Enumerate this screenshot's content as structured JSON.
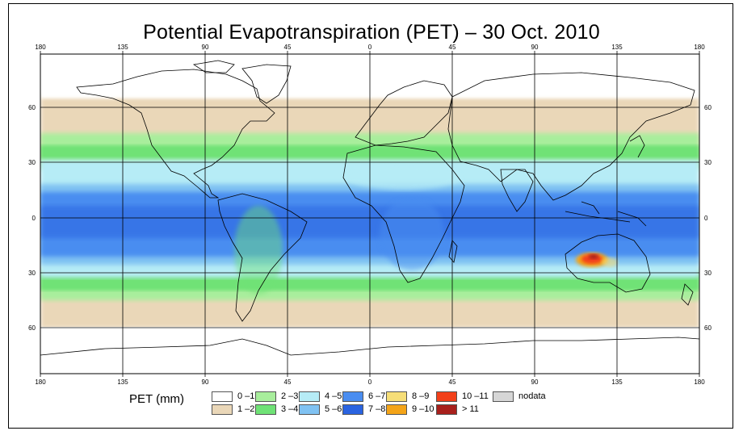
{
  "title": "Potential Evapotranspiration (PET) – 30 Oct. 2010",
  "axes": {
    "lon_ticks": [
      "180",
      "135",
      "90",
      "45",
      "0",
      "45",
      "90",
      "135",
      "180"
    ],
    "lat_ticks": [
      "60",
      "30",
      "0",
      "30",
      "60"
    ]
  },
  "legend": {
    "label": "PET (mm)",
    "items": [
      {
        "label": "0 –1",
        "color": "#ffffff"
      },
      {
        "label": "1 –2",
        "color": "#ead7b8"
      },
      {
        "label": "2 –3",
        "color": "#a8ee9c"
      },
      {
        "label": "3 –4",
        "color": "#6fe276"
      },
      {
        "label": "4 –5",
        "color": "#b6ecf6"
      },
      {
        "label": "5 –6",
        "color": "#80c2f2"
      },
      {
        "label": "6 –7",
        "color": "#4a8df0"
      },
      {
        "label": "7 –8",
        "color": "#2a63e0"
      },
      {
        "label": "8 –9",
        "color": "#f6de78"
      },
      {
        "label": "9 –10",
        "color": "#f4a418"
      },
      {
        "label": "10 –11",
        "color": "#f2401a"
      },
      {
        "label": "> 11",
        "color": "#a8201c"
      },
      {
        "label": "nodata",
        "color": "#d6d6d6"
      }
    ]
  },
  "map_colors": {
    "water": "#ffffff",
    "coast": "#000000",
    "grid": "#000000"
  }
}
